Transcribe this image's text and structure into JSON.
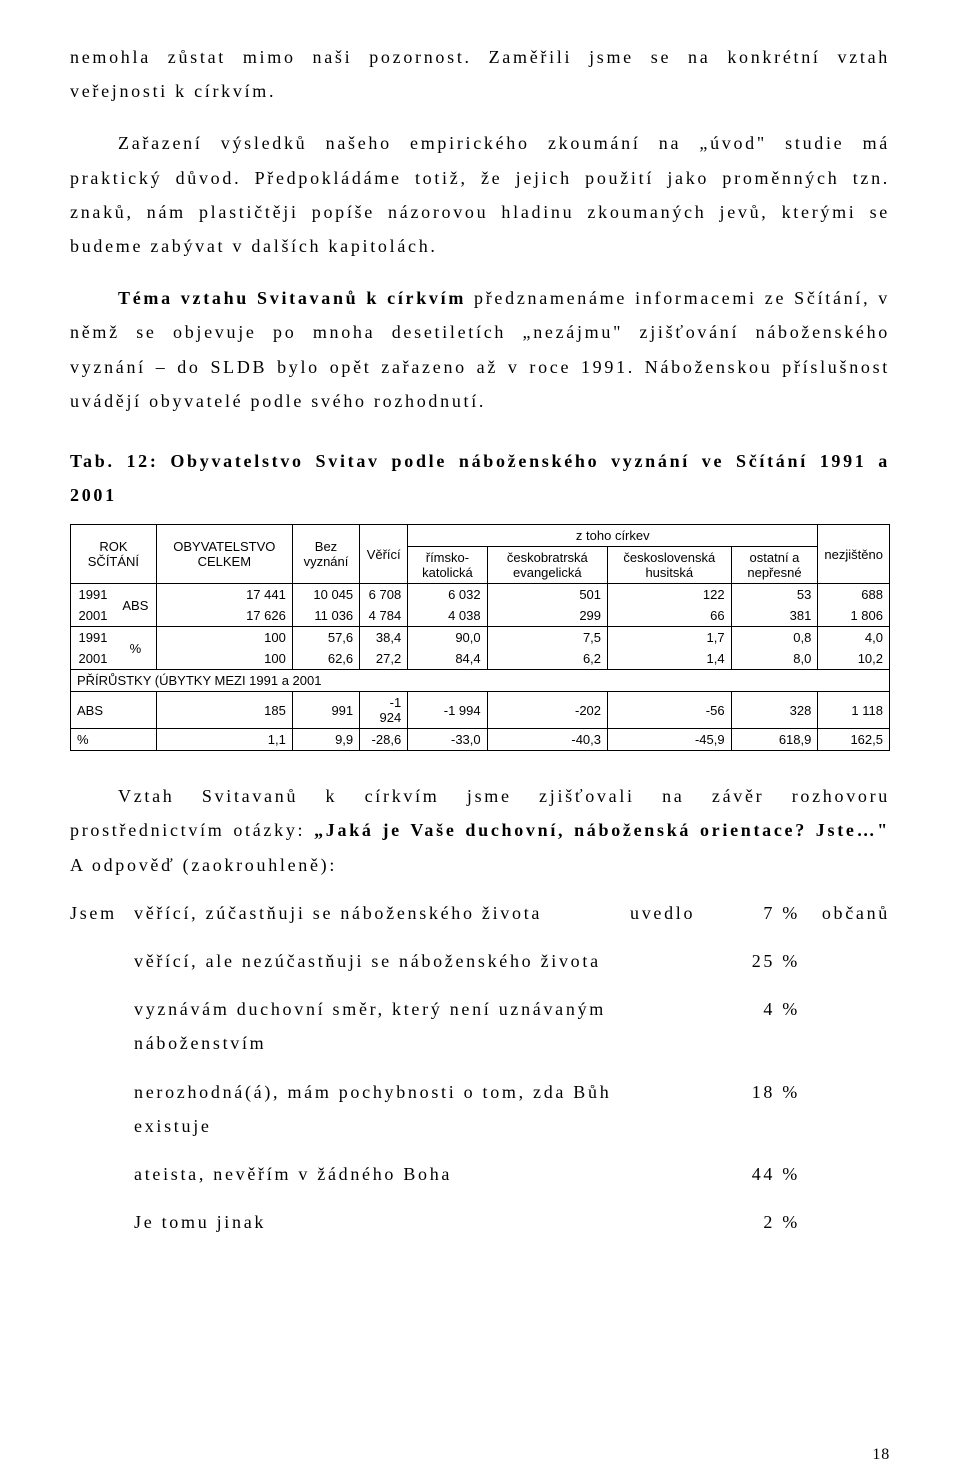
{
  "paragraphs": {
    "p1": "nemohla zůstat mimo naši pozornost. Zaměřili jsme se na konkrétní vztah veřejnosti k církvím.",
    "p2": "Zařazení výsledků našeho empirického zkoumání na „úvod\" studie má praktický důvod. Předpokládáme totiž, že jejich použití jako proměnných tzn. znaků, nám plastičtěji popíše názorovou hladinu zkoumaných jevů, kterými se budeme zabývat v dalších kapitolách.",
    "p3_bold": "Téma vztahu Svitavanů k církvím",
    "p3_rest": " předznamenáme informacemi ze Sčítání, v němž se objevuje po mnoha desetiletích „nezájmu\" zjišťování náboženského vyznání – do SLDB bylo opět zařazeno až v roce 1991. Náboženskou příslušnost uvádějí obyvatelé podle svého rozhodnutí.",
    "table_caption": "Tab. 12: Obyvatelstvo Svitav podle náboženského vyznání ve Sčítání 1991 a 2001",
    "q_intro_a": "Vztah Svitavanů k církvím jsme zjišťovali na závěr rozhovoru prostřednictvím otázky: ",
    "q_intro_bold": "„Jaká je Vaše duchovní, náboženská orientace? Jste…\"",
    "q_intro_b": " A odpověď (zaokrouhleně):"
  },
  "table": {
    "header": {
      "col_rok": "ROK SČÍTÁNÍ",
      "col_obyv": "OBYVATELSTVO CELKEM",
      "col_bez": "Bez vyznání",
      "col_verici": "Věřící",
      "col_ztoho": "z toho církev",
      "col_rim": "římsko-katolická",
      "col_cesbr": "českobratrská evangelická",
      "col_csl": "československá husitská",
      "col_ost": "ostatní a nepřesné",
      "col_nez": "nezjištěno"
    },
    "rows_abs": [
      {
        "rok": "1991",
        "vals": [
          "17 441",
          "10 045",
          "6 708",
          "6 032",
          "501",
          "122",
          "53",
          "688"
        ]
      },
      {
        "rok": "2001",
        "vals": [
          "17 626",
          "11 036",
          "4 784",
          "4 038",
          "299",
          "66",
          "381",
          "1 806"
        ]
      }
    ],
    "rowlabel_abs": "ABS",
    "rows_pct": [
      {
        "rok": "1991",
        "vals": [
          "100",
          "57,6",
          "38,4",
          "90,0",
          "7,5",
          "1,7",
          "0,8",
          "4,0"
        ]
      },
      {
        "rok": "2001",
        "vals": [
          "100",
          "62,6",
          "27,2",
          "84,4",
          "6,2",
          "1,4",
          "8,0",
          "10,2"
        ]
      }
    ],
    "rowlabel_pct": "%",
    "prirustky_label": "PŘÍRŮSTKY (ÚBYTKY MEZI 1991 a 2001",
    "prirustky": [
      {
        "rok": "ABS",
        "vals": [
          "185",
          "991",
          "-1 924",
          "-1 994",
          "-202",
          "-56",
          "328",
          "1 118"
        ]
      },
      {
        "rok": "%",
        "vals": [
          "1,1",
          "9,9",
          "-28,6",
          "-33,0",
          "-40,3",
          "-45,9",
          "618,9",
          "162,5"
        ]
      }
    ]
  },
  "answers": {
    "lead": "Jsem",
    "mid_uvedlo": "uvedlo",
    "tail_obcanu": "občanů",
    "items": [
      {
        "text": "věřící, zúčastňuji se náboženského života",
        "pct": "7 %",
        "has_lead": true,
        "has_mid": true,
        "has_tail": true
      },
      {
        "text": "věřící, ale nezúčastňuji se náboženského života",
        "pct": "25 %"
      },
      {
        "text": "vyznávám duchovní směr, který není uznávaným náboženstvím",
        "pct": "4 %"
      },
      {
        "text": "nerozhodná(á), mám pochybnosti o tom, zda Bůh existuje",
        "pct": "18 %"
      },
      {
        "text": "ateista, nevěřím v žádného Boha",
        "pct": "44 %"
      },
      {
        "text": "Je tomu jinak",
        "pct": "2 %"
      }
    ]
  },
  "page_number": "18"
}
